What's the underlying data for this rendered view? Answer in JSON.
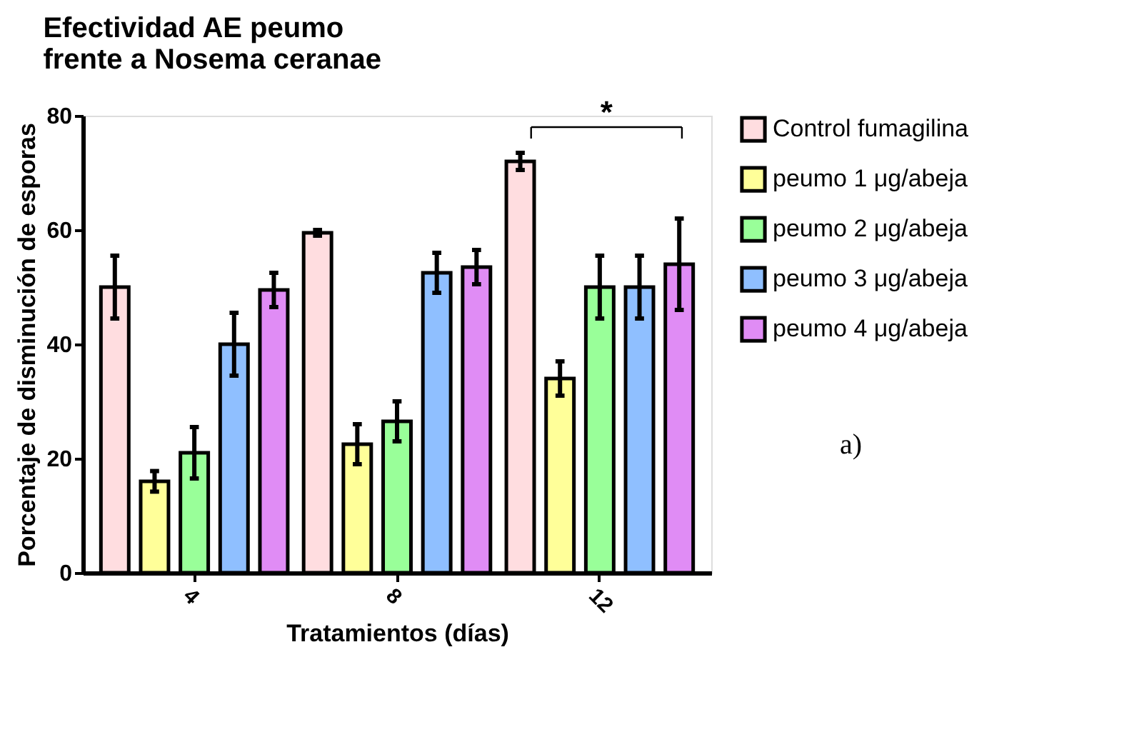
{
  "chart_data": {
    "type": "bar",
    "title": "Efectividad AE peumo\nfrente a Nosema ceranae",
    "xlabel": "Tratamientos (días)",
    "ylabel": "Porcentaje de disminución de esporas",
    "categories": [
      "4",
      "8",
      "12"
    ],
    "series": [
      {
        "name": "Control fumagilina",
        "color": "#ffdde0",
        "values": [
          50,
          59.5,
          72
        ],
        "errors": [
          5.5,
          0.5,
          1.5
        ]
      },
      {
        "name": "peumo 1 μg/abeja",
        "color": "#ffff99",
        "values": [
          16,
          22.5,
          34
        ],
        "errors": [
          1.8,
          3.5,
          3
        ]
      },
      {
        "name": "peumo 2 μg/abeja",
        "color": "#99ff99",
        "values": [
          21,
          26.5,
          50
        ],
        "errors": [
          4.5,
          3.5,
          5.5
        ]
      },
      {
        "name": "peumo 3 μg/abeja",
        "color": "#8fbfff",
        "values": [
          40,
          52.5,
          50
        ],
        "errors": [
          5.5,
          3.5,
          5.5
        ]
      },
      {
        "name": "peumo 4 μg/abeja",
        "color": "#e08cf5",
        "values": [
          49.5,
          53.5,
          54
        ],
        "errors": [
          3,
          3,
          8
        ]
      }
    ],
    "ylim": [
      0,
      80
    ],
    "yticks": [
      0,
      20,
      40,
      60,
      80
    ],
    "grid": false,
    "legend": "right",
    "annotations": [
      "*",
      "a)"
    ]
  }
}
